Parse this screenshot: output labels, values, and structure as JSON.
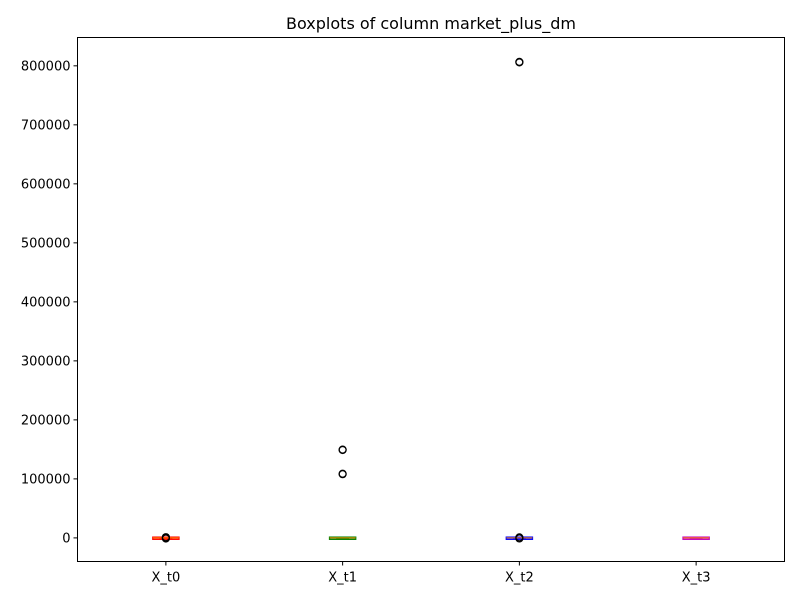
{
  "chart_data": {
    "type": "boxplot",
    "title": "Boxplots of column market_plus_dm",
    "xlabel": "",
    "ylabel": "",
    "categories": [
      "X_t0",
      "X_t1",
      "X_t2",
      "X_t3"
    ],
    "ylim": [
      -40000,
      848000
    ],
    "yticks": [
      0,
      100000,
      200000,
      300000,
      400000,
      500000,
      600000,
      700000,
      800000
    ],
    "ytick_labels": [
      "0",
      "100000",
      "200000",
      "300000",
      "400000",
      "500000",
      "600000",
      "700000",
      "800000"
    ],
    "grid": false,
    "series": [
      {
        "category": "X_t0",
        "color": "#ff0000",
        "whisker_low": -600,
        "q1": -200,
        "median": 0,
        "q3": 300,
        "whisker_high": 800,
        "outliers": [
          -1000,
          600,
          1200
        ]
      },
      {
        "category": "X_t1",
        "color": "#008000",
        "whisker_low": -600,
        "q1": -200,
        "median": 0,
        "q3": 300,
        "whisker_high": 800,
        "outliers": [
          108000,
          108700,
          149000,
          149600
        ]
      },
      {
        "category": "X_t2",
        "color": "#0000ff",
        "whisker_low": -600,
        "q1": -200,
        "median": 0,
        "q3": 300,
        "whisker_high": 800,
        "outliers": [
          -900,
          900,
          805800,
          806700
        ]
      },
      {
        "category": "X_t3",
        "color": "#c000c0",
        "whisker_low": -600,
        "q1": -200,
        "median": 0,
        "q3": 300,
        "whisker_high": 800,
        "outliers": []
      }
    ],
    "median_color": "#ff8c00",
    "outlier_edge_color": "#000000"
  }
}
